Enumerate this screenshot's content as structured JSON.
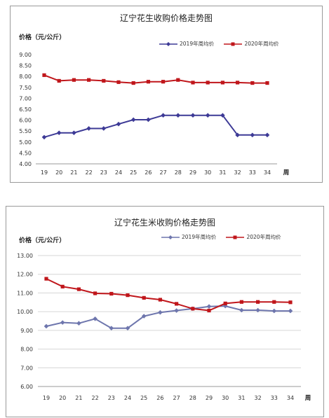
{
  "chart_data": [
    {
      "type": "line",
      "title": "辽宁花生收购价格走势图",
      "ylabel": "价格（元/公斤）",
      "xlabel": "周",
      "categories": [
        "19",
        "20",
        "21",
        "22",
        "23",
        "24",
        "25",
        "26",
        "27",
        "28",
        "29",
        "30",
        "31",
        "32",
        "33",
        "34"
      ],
      "ylim": [
        4.0,
        9.0
      ],
      "yticks": [
        "4.00",
        "4.50",
        "5.00",
        "5.50",
        "6.00",
        "6.50",
        "7.00",
        "7.50",
        "8.00",
        "8.50",
        "9.00"
      ],
      "grid": false,
      "legend_position": "top-right",
      "series": [
        {
          "name": "2019年周均价",
          "color": "#3d3a96",
          "marker": "diamond",
          "values": [
            5.22,
            5.42,
            5.42,
            5.62,
            5.62,
            5.82,
            6.02,
            6.02,
            6.22,
            6.22,
            6.22,
            6.22,
            6.22,
            5.32,
            5.32,
            5.32
          ]
        },
        {
          "name": "2020年周均价",
          "color": "#c0161b",
          "marker": "square",
          "values": [
            8.06,
            7.8,
            7.84,
            7.84,
            7.8,
            7.74,
            7.7,
            7.76,
            7.76,
            7.84,
            7.72,
            7.72,
            7.72,
            7.72,
            7.7,
            7.7
          ]
        }
      ]
    },
    {
      "type": "line",
      "title": "辽宁花生米收购价格走势图",
      "ylabel": "价格（元/公斤）",
      "xlabel": "周",
      "categories": [
        "19",
        "20",
        "21",
        "22",
        "23",
        "24",
        "25",
        "26",
        "27",
        "28",
        "29",
        "30",
        "31",
        "32",
        "33",
        "34"
      ],
      "ylim": [
        6.0,
        13.0
      ],
      "yticks": [
        "6.00",
        "7.00",
        "8.00",
        "9.00",
        "10.00",
        "11.00",
        "12.00",
        "13.00"
      ],
      "grid": true,
      "legend_position": "top-right",
      "series": [
        {
          "name": "2019年周均价",
          "color": "#6e76ad",
          "marker": "diamond",
          "values": [
            9.22,
            9.42,
            9.38,
            9.62,
            9.12,
            9.12,
            9.76,
            9.96,
            10.06,
            10.16,
            10.28,
            10.3,
            10.08,
            10.08,
            10.04,
            10.04
          ]
        },
        {
          "name": "2020年周均价",
          "color": "#c0161b",
          "marker": "square",
          "values": [
            11.76,
            11.34,
            11.2,
            10.98,
            10.96,
            10.88,
            10.74,
            10.64,
            10.42,
            10.16,
            10.06,
            10.44,
            10.52,
            10.52,
            10.52,
            10.5
          ]
        }
      ]
    }
  ]
}
